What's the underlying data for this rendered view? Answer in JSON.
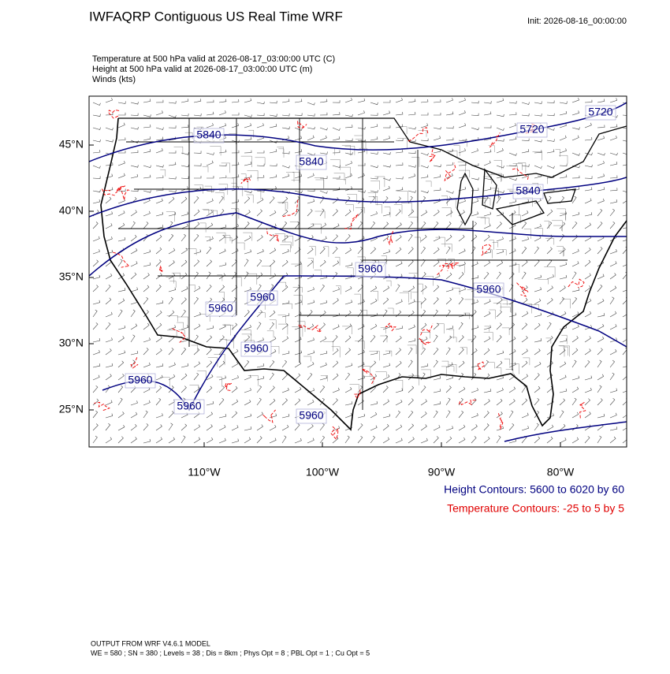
{
  "header": {
    "title": "IWFAQRP Contiguous US Real Time WRF",
    "init": "Init: 2026-08-16_00:00:00"
  },
  "fields": [
    "Temperature at 500 hPa valid at 2026-08-17_03:00:00 UTC   (C)",
    "Height at 500 hPa valid at 2026-08-17_03:00:00 UTC   (m)",
    "Winds   (kts)"
  ],
  "map": {
    "lat_labels": [
      "45°N",
      "40°N",
      "35°N",
      "30°N",
      "25°N"
    ],
    "lon_labels": [
      "110°W",
      "100°W",
      "90°W",
      "80°W"
    ],
    "contour_labels": [
      "5840",
      "5840",
      "5720",
      "5720",
      "5840",
      "5960",
      "5960",
      "5960",
      "5960",
      "5960",
      "5960",
      "5960",
      "5960"
    ]
  },
  "legend": {
    "height": "Height Contours: 5600 to 6020 by 60",
    "temperature": "Temperature Contours: -25 to 5 by 5"
  },
  "footer": {
    "model": "OUTPUT FROM WRF V4.6.1 MODEL",
    "settings": "WE = 580 ; SN = 380 ; Levels = 38 ; Dis = 8km ; Phys Opt = 8 ; PBL Opt = 1 ; Cu Opt = 5"
  }
}
